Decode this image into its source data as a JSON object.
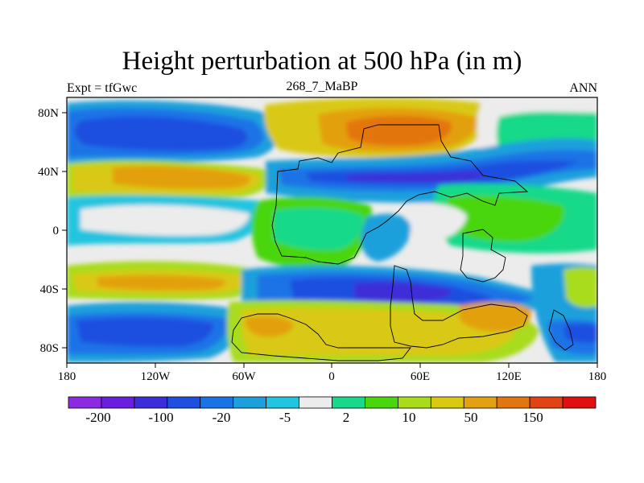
{
  "title": "Height perturbation at 500 hPa (in m)",
  "left_label": "Expt = tfGwc",
  "center_label": "268_7_MaBP",
  "right_label": "ANN",
  "lon_ticks": [
    "180",
    "120W",
    "60W",
    "0",
    "60E",
    "120E",
    "180"
  ],
  "lat_ticks": [
    "80N",
    "40N",
    "0",
    "40S",
    "80S"
  ],
  "colorbar": {
    "colors": [
      "#8a2be2",
      "#6a1ee0",
      "#3c2dd8",
      "#1f4fe0",
      "#1a73e6",
      "#1ba0dc",
      "#22c4e0",
      "#ececec",
      "#18d98a",
      "#4ad60c",
      "#a8dc1a",
      "#d9c912",
      "#e3a010",
      "#e37510",
      "#e24214",
      "#e01010"
    ],
    "labels": [
      "-200",
      "-100",
      "-20",
      "-5",
      "2",
      "10",
      "50",
      "150"
    ]
  }
}
